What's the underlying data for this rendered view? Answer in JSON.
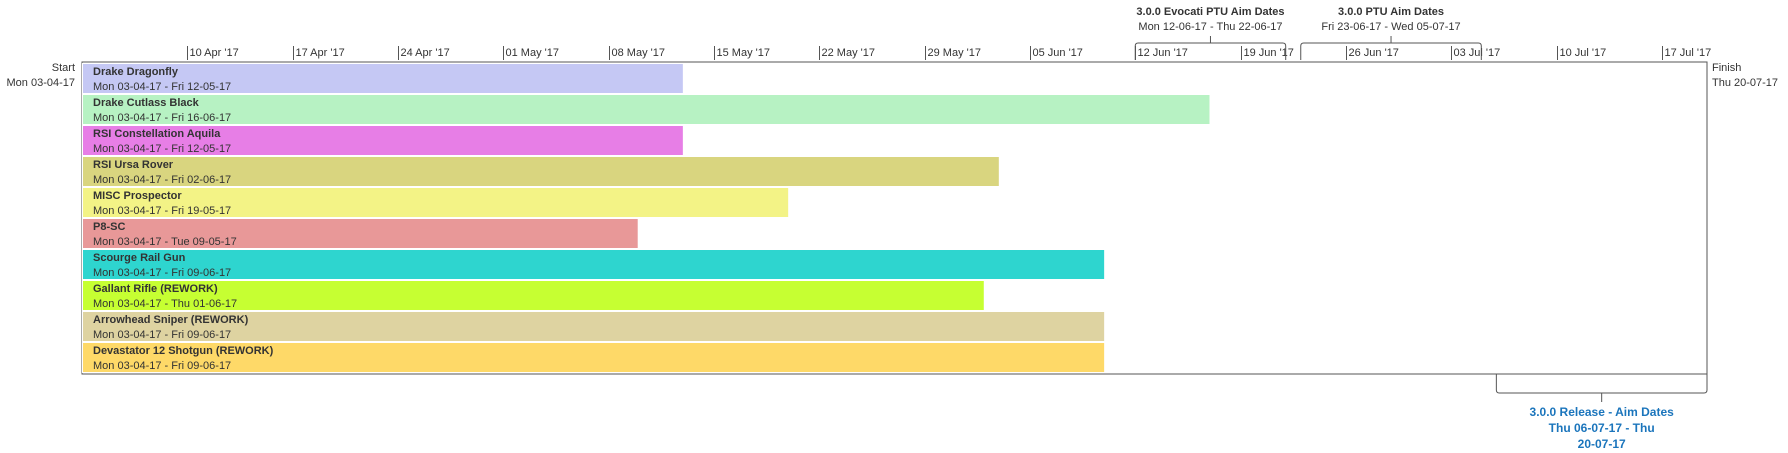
{
  "chart_data": {
    "type": "gantt-timeline",
    "start": {
      "label": "Start",
      "date": "Mon 03-04-17"
    },
    "finish": {
      "label": "Finish",
      "date": "Thu 20-07-17"
    },
    "axis": {
      "min_date": "2017-04-03",
      "max_date": "2017-07-20",
      "ticks": [
        {
          "date": "2017-04-10",
          "label": "10 Apr '17"
        },
        {
          "date": "2017-04-17",
          "label": "17 Apr '17"
        },
        {
          "date": "2017-04-24",
          "label": "24 Apr '17"
        },
        {
          "date": "2017-05-01",
          "label": "01 May '17"
        },
        {
          "date": "2017-05-08",
          "label": "08 May '17"
        },
        {
          "date": "2017-05-15",
          "label": "15 May '17"
        },
        {
          "date": "2017-05-22",
          "label": "22 May '17"
        },
        {
          "date": "2017-05-29",
          "label": "29 May '17"
        },
        {
          "date": "2017-06-05",
          "label": "05 Jun '17"
        },
        {
          "date": "2017-06-12",
          "label": "12 Jun '17"
        },
        {
          "date": "2017-06-19",
          "label": "19 Jun '17"
        },
        {
          "date": "2017-06-26",
          "label": "26 Jun '17"
        },
        {
          "date": "2017-07-03",
          "label": "03 Jul '17"
        },
        {
          "date": "2017-07-10",
          "label": "10 Jul '17"
        },
        {
          "date": "2017-07-17",
          "label": "17 Jul '17"
        }
      ]
    },
    "tasks": [
      {
        "name": "Drake Dragonfly",
        "dates": "Mon 03-04-17 - Fri 12-05-17",
        "start": "2017-04-03",
        "end": "2017-05-12",
        "color": "#c5c8f4"
      },
      {
        "name": "Drake Cutlass Black",
        "dates": "Mon 03-04-17 - Fri 16-06-17",
        "start": "2017-04-03",
        "end": "2017-06-16",
        "color": "#b7f2c3"
      },
      {
        "name": "RSI Constellation Aquila",
        "dates": "Mon 03-04-17 - Fri 12-05-17",
        "start": "2017-04-03",
        "end": "2017-05-12",
        "color": "#e77ee6"
      },
      {
        "name": "RSI Ursa Rover",
        "dates": "Mon 03-04-17 - Fri 02-06-17",
        "start": "2017-04-03",
        "end": "2017-06-02",
        "color": "#d9d57f"
      },
      {
        "name": "MISC Prospector",
        "dates": "Mon 03-04-17 - Fri 19-05-17",
        "start": "2017-04-03",
        "end": "2017-05-19",
        "color": "#f3f386"
      },
      {
        "name": "P8-SC",
        "dates": "Mon 03-04-17 - Tue 09-05-17",
        "start": "2017-04-03",
        "end": "2017-05-09",
        "color": "#e89898"
      },
      {
        "name": "Scourge Rail Gun",
        "dates": "Mon 03-04-17 - Fri 09-06-17",
        "start": "2017-04-03",
        "end": "2017-06-09",
        "color": "#2ed5cf"
      },
      {
        "name": "Gallant Rifle (REWORK)",
        "dates": "Mon 03-04-17 - Thu 01-06-17",
        "start": "2017-04-03",
        "end": "2017-06-01",
        "color": "#c6ff32"
      },
      {
        "name": "Arrowhead Sniper (REWORK)",
        "dates": "Mon 03-04-17 - Fri 09-06-17",
        "start": "2017-04-03",
        "end": "2017-06-09",
        "color": "#ded3a1"
      },
      {
        "name": "Devastator 12 Shotgun (REWORK)",
        "dates": "Mon 03-04-17 - Fri 09-06-17",
        "start": "2017-04-03",
        "end": "2017-06-09",
        "color": "#fed968"
      }
    ],
    "milestones_above": [
      {
        "title": "3.0.0 Evocati PTU Aim Dates",
        "dates": "Mon 12-06-17 - Thu 22-06-17",
        "start": "2017-06-12",
        "end": "2017-06-22"
      },
      {
        "title": "3.0.0 PTU Aim Dates",
        "dates": "Fri 23-06-17 - Wed 05-07-17",
        "start": "2017-06-23",
        "end": "2017-07-05"
      }
    ],
    "milestone_below": {
      "title_lines": [
        "3.0.0 Release - Aim Dates",
        "Thu 06-07-17 - Thu",
        "20-07-17"
      ],
      "start": "2017-07-06",
      "end": "2017-07-20",
      "color": "#1b75bc"
    }
  }
}
